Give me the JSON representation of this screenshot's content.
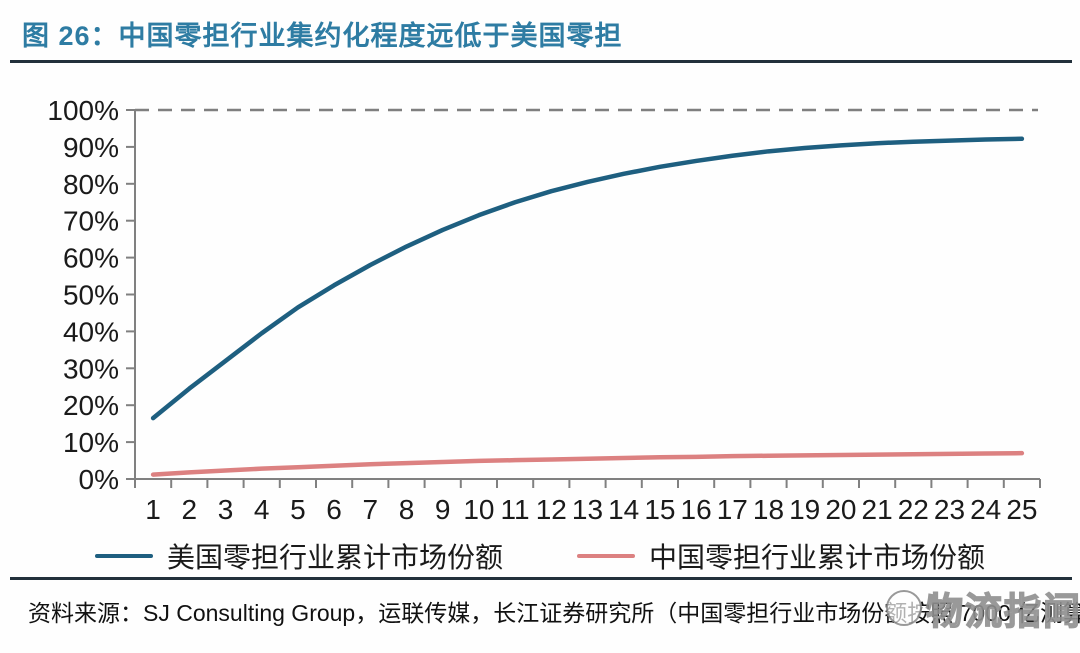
{
  "figure": {
    "title": "图 26：中国零担行业集约化程度远低于美国零担",
    "source_note": "资料来源：SJ Consulting Group，运联传媒，长江证券研究所（中国零担行业市场份额按照 7000 亿测算）",
    "watermark": "物流指闻"
  },
  "colors": {
    "title": "#2e7ca3",
    "us_line": "#1e5f80",
    "cn_line": "#dc8181",
    "axis": "#808080",
    "tick_label": "#1a1a1a",
    "dashed_line": "#7f7f7f",
    "rule": "#22303b"
  },
  "chart_data": {
    "type": "line",
    "title": "图 26：中国零担行业集约化程度远低于美国零担",
    "xlabel": "",
    "ylabel": "",
    "x": [
      1,
      2,
      3,
      4,
      5,
      6,
      7,
      8,
      9,
      10,
      11,
      12,
      13,
      14,
      15,
      16,
      17,
      18,
      19,
      20,
      21,
      22,
      23,
      24,
      25
    ],
    "xticks": [
      "1",
      "2",
      "3",
      "4",
      "5",
      "6",
      "7",
      "8",
      "9",
      "10",
      "11",
      "12",
      "13",
      "14",
      "15",
      "16",
      "17",
      "18",
      "19",
      "20",
      "21",
      "22",
      "23",
      "24",
      "25"
    ],
    "yticks": [
      "0%",
      "10%",
      "20%",
      "30%",
      "40%",
      "50%",
      "60%",
      "70%",
      "80%",
      "90%",
      "100%"
    ],
    "ylim": [
      0,
      100
    ],
    "ytick_step": 10,
    "ytick_format": "percent",
    "grid": "none",
    "reference_line": {
      "value": 100,
      "style": "dashed",
      "color": "#7f7f7f"
    },
    "legend_position": "bottom-center",
    "series": [
      {
        "name": "美国零担行业累计市场份额",
        "color": "#1e5f80",
        "values": [
          16.5,
          24.5,
          32.0,
          39.5,
          46.5,
          52.5,
          58.0,
          63.0,
          67.5,
          71.5,
          75.0,
          78.0,
          80.5,
          82.7,
          84.6,
          86.2,
          87.6,
          88.8,
          89.7,
          90.4,
          91.0,
          91.4,
          91.7,
          92.0,
          92.2
        ]
      },
      {
        "name": "中国零担行业累计市场份额",
        "color": "#dc8181",
        "values": [
          1.2,
          1.8,
          2.3,
          2.8,
          3.2,
          3.6,
          4.0,
          4.3,
          4.6,
          4.9,
          5.1,
          5.3,
          5.5,
          5.7,
          5.9,
          6.0,
          6.2,
          6.3,
          6.4,
          6.5,
          6.6,
          6.7,
          6.8,
          6.9,
          7.0
        ]
      }
    ]
  }
}
